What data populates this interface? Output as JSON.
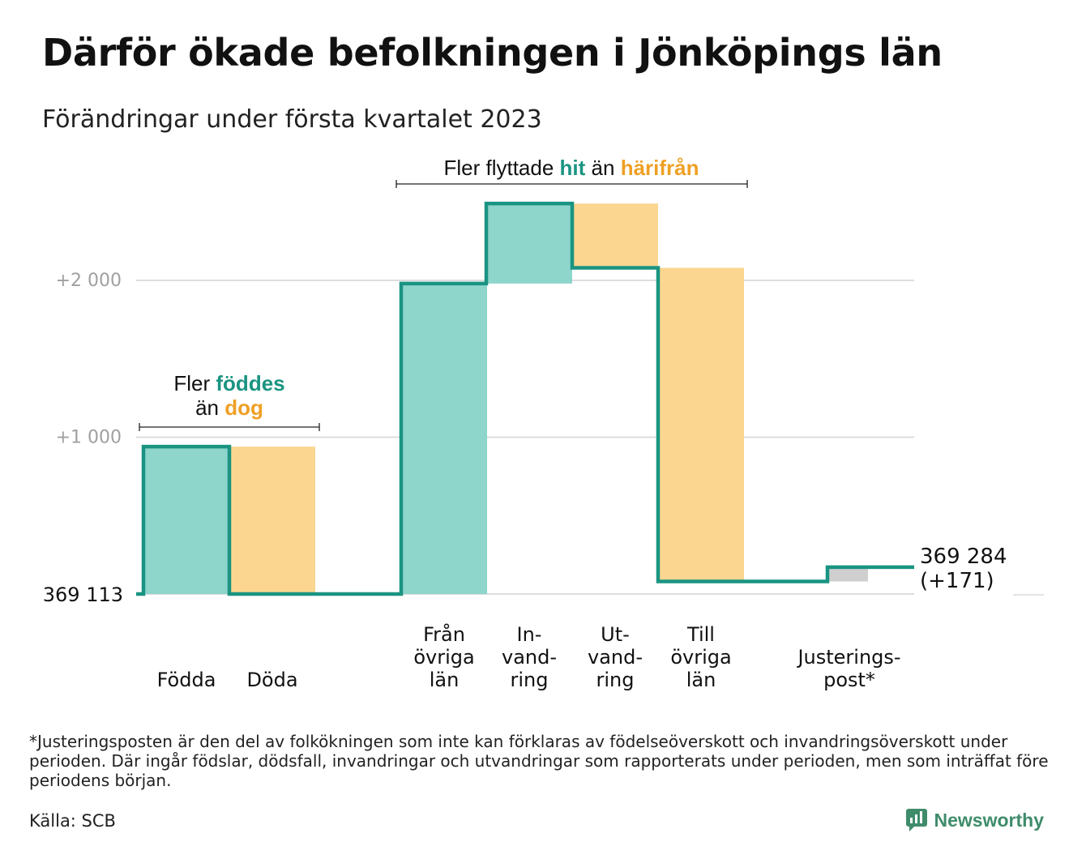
{
  "title": "Därför ökade befolkningen i Jönköpings län",
  "subtitle": "Förändringar under första kvartalet 2023",
  "colors": {
    "increase": "#8ed5cc",
    "decrease": "#fbd690",
    "adjustment": "#cfcfcf",
    "line": "#1a9482",
    "accent_teal": "#1a9482",
    "accent_orange": "#efa025",
    "grid": "#dddddd",
    "brand": "#3f8c6b"
  },
  "annotations": {
    "births_deaths": {
      "prefix": "Fler",
      "highlight1": "föddes",
      "middle": "än",
      "highlight2": "dog"
    },
    "migration": {
      "prefix": "Fler flyttade",
      "highlight1": "hit",
      "middle": "än",
      "highlight2": "härifrån"
    }
  },
  "chart_data": {
    "type": "waterfall",
    "title": "Därför ökade befolkningen i Jönköpings län",
    "subtitle": "Förändringar under första kvartalet 2023",
    "baseline": 369113,
    "baseline_label": "369 113",
    "categories": [
      "Födda",
      "Döda",
      "Från övriga län",
      "Invandring",
      "Utvandring",
      "Till övriga län",
      "Justeringspost*"
    ],
    "category_labels": [
      [
        "Födda"
      ],
      [
        "Döda"
      ],
      [
        "Från",
        "övriga",
        "län"
      ],
      [
        "In-",
        "vand-",
        "ring"
      ],
      [
        "Ut-",
        "vand-",
        "ring"
      ],
      [
        "Till",
        "övriga",
        "län"
      ],
      [
        "Justerings-",
        "post*"
      ]
    ],
    "values": [
      940,
      -940,
      1980,
      510,
      -410,
      -2000,
      91
    ],
    "kinds": [
      "increase",
      "decrease",
      "increase",
      "increase",
      "decrease",
      "decrease",
      "adjustment"
    ],
    "cumulative_change": [
      940,
      0,
      1980,
      2490,
      2080,
      80,
      171
    ],
    "end_value": 369284,
    "end_label": "369 284",
    "end_change_label": "(+171)",
    "yticks": [
      1000,
      2000
    ],
    "ytick_labels": [
      "+1 000",
      "+2 000"
    ],
    "ylim": [
      0,
      2600
    ],
    "grid": true,
    "legend": "none"
  },
  "footnote": "*Justeringsposten är den del av folkökningen som inte kan förklaras av födelseöverskott och invandringsöverskott under perioden. Där ingår födslar, dödsfall, invandringar och utvandringar som rapporterats under perioden, men som inträffat före periodens början.",
  "source": "Källa: SCB",
  "brand": {
    "name": "Newsworthy",
    "icon": "newsworthy-logo-icon"
  }
}
